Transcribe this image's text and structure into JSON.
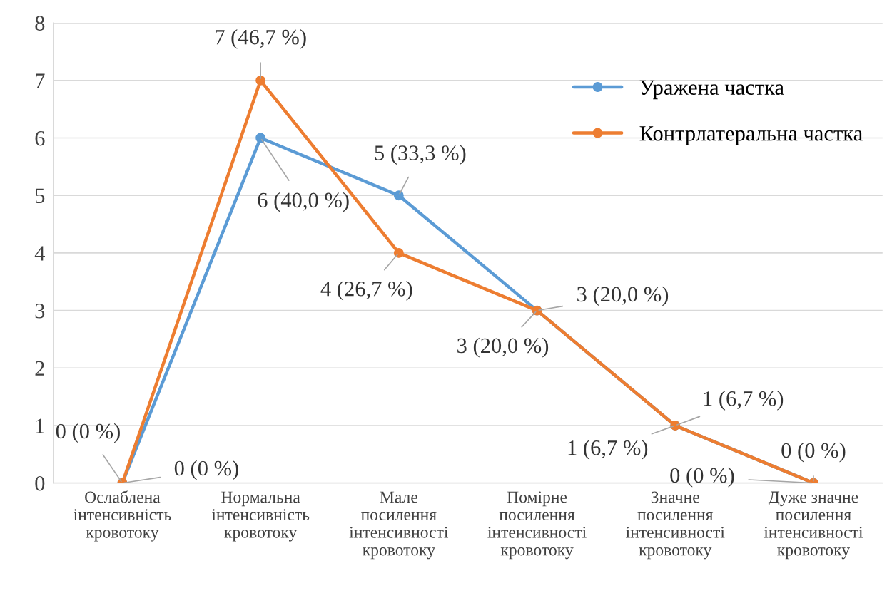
{
  "chart_data": {
    "type": "line",
    "categories": [
      "Ослаблена\nінтенсивність\nкровотоку",
      "Нормальна\nінтенсивність\nкровотоку",
      "Мале\nпосилення\nінтенсивності\nкровотоку",
      "Помірне\nпосилення\nінтенсивності\nкровотоку",
      "Значне\nпосилення\nінтенсивності\nкровотоку",
      "Дуже значне\nпосилення\nінтенсивності\nкровотоку"
    ],
    "series": [
      {
        "name": "Уражена частка",
        "color": "#5b9bd5",
        "values": [
          0,
          6,
          5,
          3,
          1,
          0
        ],
        "value_labels": [
          "0 (0 %)",
          "6 (40,0 %)",
          "5 (33,3 %)",
          "3 (20,0 %)",
          "1 (6,7 %)",
          "0 (0 %)"
        ]
      },
      {
        "name": "Контрлатеральна частка",
        "color": "#ed7d31",
        "values": [
          0,
          7,
          4,
          3,
          1,
          0
        ],
        "value_labels": [
          "0 (0 %)",
          "7 (46,7 %)",
          "4 (26,7 %)",
          "3 (20,0 %)",
          "1 (6,7 %)",
          "0 (0 %)"
        ]
      }
    ],
    "ylim": [
      0,
      8
    ],
    "yticks": [
      0,
      1,
      2,
      3,
      4,
      5,
      6,
      7,
      8
    ],
    "grid": "y",
    "legend": "top right",
    "marker": "circle",
    "line_style": "solid"
  }
}
